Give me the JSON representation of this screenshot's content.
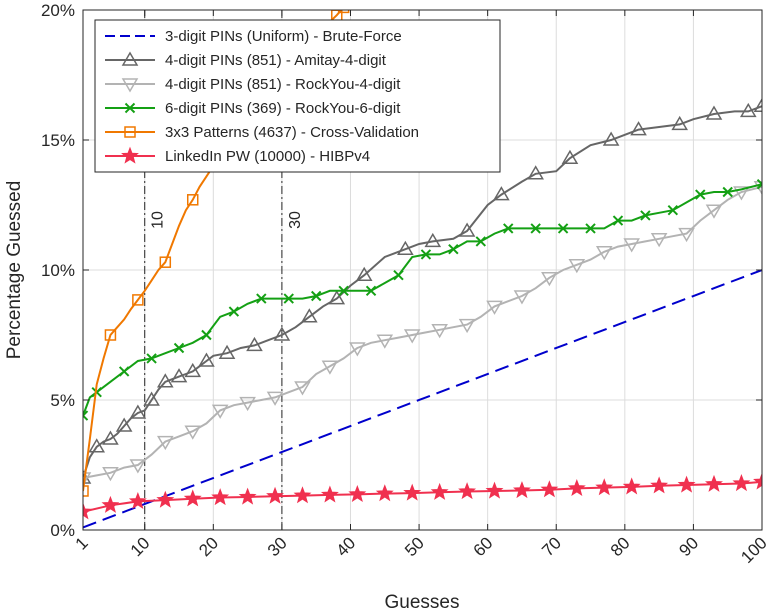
{
  "chart_data": {
    "type": "line",
    "title": "",
    "xlabel": "Guesses",
    "ylabel": "Percentage Guessed",
    "xlim": [
      1,
      100
    ],
    "ylim": [
      0,
      20
    ],
    "grid": true,
    "legend_position": "top-left",
    "x_ticks": [
      1,
      10,
      20,
      30,
      40,
      50,
      60,
      70,
      80,
      90,
      100
    ],
    "x_tick_labels": [
      "1",
      "10",
      "20",
      "30",
      "40",
      "50",
      "60",
      "70",
      "80",
      "90",
      "100"
    ],
    "y_ticks": [
      0,
      5,
      10,
      15,
      20
    ],
    "y_tick_labels": [
      "0%",
      "5%",
      "10%",
      "15%",
      "20%"
    ],
    "annotations": [
      {
        "x": 10,
        "text": "10"
      },
      {
        "x": 30,
        "text": "30"
      }
    ],
    "series": [
      {
        "name": "3-digit PINs (Uniform) - Brute-Force",
        "color": "#0000cc",
        "dash": "dashed",
        "marker": "none",
        "x": [
          1,
          100
        ],
        "y": [
          0.1,
          10
        ]
      },
      {
        "name": "4-digit PINs (851) - Amitay-4-digit",
        "color": "#666666",
        "dash": "solid",
        "marker": "triangle-up",
        "x": [
          1,
          2,
          3,
          4,
          5,
          6,
          7,
          8,
          9,
          10,
          11,
          12,
          13,
          14,
          15,
          16,
          17,
          18,
          19,
          20,
          22,
          24,
          26,
          28,
          30,
          32,
          34,
          36,
          38,
          40,
          42,
          45,
          48,
          50,
          52,
          55,
          57,
          60,
          62,
          65,
          67,
          70,
          72,
          75,
          78,
          80,
          82,
          85,
          88,
          90,
          93,
          96,
          98,
          100
        ],
        "y": [
          2.0,
          2.8,
          3.2,
          3.4,
          3.5,
          3.7,
          4.0,
          4.3,
          4.5,
          4.6,
          5.0,
          5.4,
          5.7,
          5.8,
          5.9,
          6.0,
          6.1,
          6.3,
          6.5,
          6.7,
          6.8,
          7.0,
          7.1,
          7.3,
          7.5,
          7.8,
          8.2,
          8.6,
          8.9,
          9.4,
          9.8,
          10.5,
          10.8,
          11.0,
          11.1,
          11.2,
          11.5,
          12.5,
          12.9,
          13.4,
          13.7,
          13.8,
          14.3,
          14.8,
          15.0,
          15.2,
          15.4,
          15.5,
          15.6,
          15.8,
          16.0,
          16.1,
          16.1,
          16.3
        ]
      },
      {
        "name": "4-digit PINs (851) - RockYou-4-digit",
        "color": "#b3b3b3",
        "dash": "solid",
        "marker": "triangle-down",
        "x": [
          1,
          3,
          5,
          7,
          9,
          11,
          13,
          15,
          17,
          19,
          21,
          23,
          25,
          27,
          29,
          31,
          33,
          35,
          37,
          39,
          41,
          43,
          45,
          47,
          49,
          51,
          53,
          55,
          57,
          59,
          61,
          63,
          65,
          67,
          69,
          71,
          73,
          75,
          77,
          79,
          81,
          83,
          85,
          87,
          89,
          91,
          93,
          95,
          97,
          100
        ],
        "y": [
          2.0,
          2.1,
          2.2,
          2.4,
          2.5,
          2.9,
          3.4,
          3.6,
          3.8,
          4.1,
          4.6,
          4.8,
          4.9,
          5.0,
          5.1,
          5.3,
          5.5,
          6.0,
          6.3,
          6.6,
          7.0,
          7.2,
          7.3,
          7.4,
          7.5,
          7.6,
          7.7,
          7.8,
          7.9,
          8.2,
          8.6,
          8.8,
          9.0,
          9.3,
          9.7,
          10.0,
          10.2,
          10.4,
          10.7,
          10.9,
          11.0,
          11.1,
          11.2,
          11.3,
          11.4,
          11.9,
          12.3,
          12.7,
          13.0,
          13.2
        ]
      },
      {
        "name": "6-digit PINs (369) - RockYou-6-digit",
        "color": "#14a014",
        "dash": "solid",
        "marker": "x",
        "x": [
          1,
          2,
          3,
          5,
          7,
          9,
          11,
          13,
          15,
          17,
          19,
          21,
          23,
          25,
          27,
          29,
          31,
          33,
          35,
          37,
          39,
          41,
          43,
          45,
          47,
          49,
          51,
          53,
          55,
          57,
          59,
          61,
          63,
          65,
          67,
          69,
          71,
          73,
          75,
          77,
          79,
          81,
          83,
          85,
          87,
          89,
          91,
          93,
          95,
          97,
          100
        ],
        "y": [
          4.4,
          5.1,
          5.3,
          5.7,
          6.1,
          6.5,
          6.6,
          6.8,
          7.0,
          7.2,
          7.5,
          8.2,
          8.4,
          8.7,
          8.9,
          8.9,
          8.9,
          8.9,
          9.0,
          9.2,
          9.2,
          9.2,
          9.2,
          9.5,
          9.8,
          10.5,
          10.6,
          10.6,
          10.8,
          11.1,
          11.1,
          11.4,
          11.6,
          11.6,
          11.6,
          11.6,
          11.6,
          11.6,
          11.6,
          11.6,
          11.9,
          11.9,
          12.1,
          12.2,
          12.3,
          12.6,
          12.9,
          13.0,
          13.0,
          13.1,
          13.3
        ]
      },
      {
        "name": "3x3 Patterns (4637) - Cross-Validation",
        "color": "#f07800",
        "dash": "solid",
        "marker": "square",
        "x": [
          1,
          2,
          3,
          4,
          5,
          6,
          7,
          8,
          9,
          10,
          11,
          12,
          13,
          14,
          15,
          16,
          17,
          18,
          19,
          20,
          22,
          24,
          26,
          28,
          30,
          32,
          34,
          36,
          38,
          39
        ],
        "y": [
          1.5,
          3.5,
          5.6,
          6.6,
          7.5,
          7.8,
          8.1,
          8.5,
          8.85,
          9.2,
          9.6,
          10.0,
          10.3,
          11.0,
          11.7,
          12.3,
          12.7,
          13.2,
          13.6,
          14.0,
          14.8,
          15.5,
          16.2,
          17.0,
          17.7,
          18.3,
          18.8,
          19.3,
          19.8,
          20.1
        ]
      },
      {
        "name": "LinkedIn PW (10000) - HIBPv4",
        "color": "#f0304f",
        "dash": "solid",
        "marker": "star",
        "x": [
          1,
          5,
          9,
          13,
          17,
          21,
          25,
          29,
          33,
          37,
          41,
          45,
          49,
          53,
          57,
          61,
          65,
          69,
          73,
          77,
          81,
          85,
          89,
          93,
          97,
          100
        ],
        "y": [
          0.7,
          0.95,
          1.1,
          1.15,
          1.2,
          1.25,
          1.27,
          1.3,
          1.32,
          1.35,
          1.37,
          1.4,
          1.42,
          1.45,
          1.48,
          1.5,
          1.52,
          1.55,
          1.6,
          1.63,
          1.66,
          1.7,
          1.73,
          1.76,
          1.79,
          1.85
        ]
      }
    ]
  }
}
